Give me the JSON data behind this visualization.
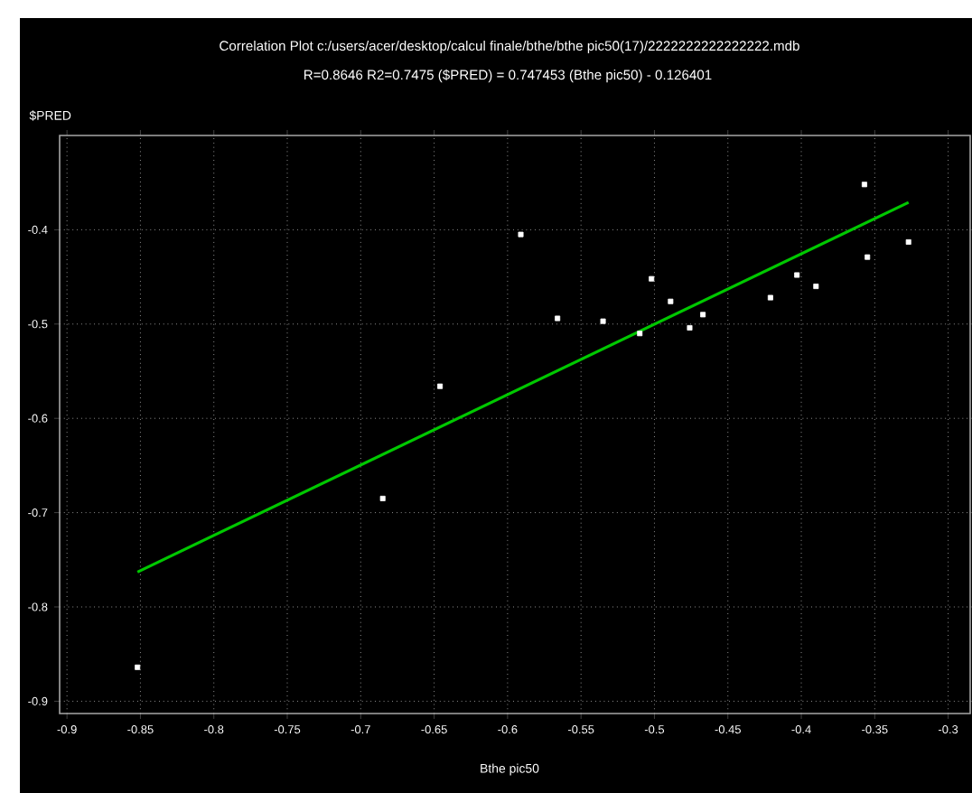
{
  "chart_data": {
    "type": "scatter",
    "title": "Correlation Plot c:/users/acer/desktop/calcul finale/bthe/bthe pic50(17)/2222222222222222.mdb",
    "subtitle": "R=0.8646 R2=0.7475    ($PRED) = 0.747453 (Bthe pic50) - 0.126401",
    "xlabel": "Bthe pic50",
    "ylabel": "$PRED",
    "xlim": [
      -0.905,
      -0.285
    ],
    "ylim": [
      -0.913,
      -0.3
    ],
    "xticks": [
      -0.9,
      -0.85,
      -0.8,
      -0.75,
      -0.7,
      -0.65,
      -0.6,
      -0.55,
      -0.5,
      -0.45,
      -0.4,
      -0.35,
      -0.3
    ],
    "yticks": [
      -0.9,
      -0.8,
      -0.7,
      -0.6,
      -0.5,
      -0.4
    ],
    "grid": true,
    "marker": "square",
    "series": [
      {
        "color": "#ffffff",
        "x": [
          -0.852,
          -0.685,
          -0.646,
          -0.591,
          -0.566,
          -0.535,
          -0.51,
          -0.502,
          -0.489,
          -0.476,
          -0.467,
          -0.421,
          -0.403,
          -0.39,
          -0.357,
          -0.355,
          -0.327
        ],
        "values": [
          -0.864,
          -0.685,
          -0.566,
          -0.405,
          -0.494,
          -0.497,
          -0.51,
          -0.452,
          -0.476,
          -0.504,
          -0.49,
          -0.472,
          -0.448,
          -0.46,
          -0.352,
          -0.429,
          -0.413
        ]
      },
      {
        "type": "line",
        "marker": "none",
        "color": "#00c800",
        "x": [
          -0.852,
          -0.327
        ],
        "values": [
          -0.763,
          -0.371
        ]
      }
    ]
  }
}
